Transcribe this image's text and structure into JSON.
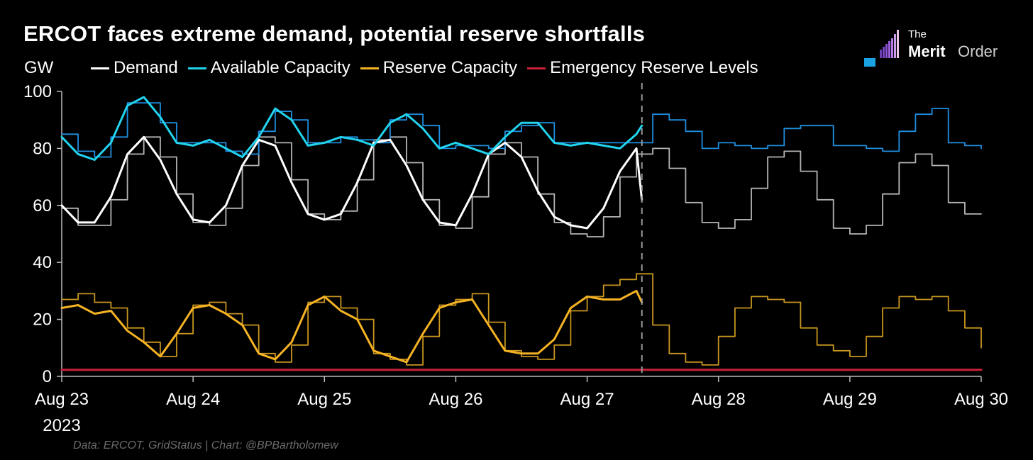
{
  "chart_data": {
    "type": "line",
    "title": "ERCOT faces extreme demand, potential reserve shortfalls",
    "ylabel": "GW",
    "xlabel": "",
    "ylim": [
      0,
      100
    ],
    "yticks": [
      0,
      20,
      40,
      60,
      80,
      100
    ],
    "x_unit": "hours since Aug 23 2023 00:00",
    "xlim": [
      0,
      168
    ],
    "xticks": [
      {
        "hour": 0,
        "label": "Aug 23"
      },
      {
        "hour": 24,
        "label": "Aug 24"
      },
      {
        "hour": 48,
        "label": "Aug 25"
      },
      {
        "hour": 72,
        "label": "Aug 26"
      },
      {
        "hour": 96,
        "label": "Aug 27"
      },
      {
        "hour": 120,
        "label": "Aug 28"
      },
      {
        "hour": 144,
        "label": "Aug 29"
      },
      {
        "hour": 168,
        "label": "Aug 30"
      }
    ],
    "year_label": "2023",
    "forecast_start_hour": 106,
    "legend": [
      {
        "name": "Demand",
        "color": "#ffffff"
      },
      {
        "name": "Available Capacity",
        "color": "#22d3ee"
      },
      {
        "name": "Reserve Capacity",
        "color": "#f5b324"
      },
      {
        "name": "Emergency Reserve Levels",
        "color": "#c8203a"
      }
    ],
    "series": [
      {
        "name": "Demand (actual)",
        "color": "#ffffff",
        "x": [
          0,
          3,
          6,
          9,
          12,
          15,
          18,
          21,
          24,
          27,
          30,
          33,
          36,
          39,
          42,
          45,
          48,
          51,
          54,
          57,
          60,
          63,
          66,
          69,
          72,
          75,
          78,
          81,
          84,
          87,
          90,
          93,
          96,
          99,
          102,
          105,
          106
        ],
        "values": [
          60,
          54,
          54,
          63,
          78,
          84,
          76,
          64,
          55,
          54,
          60,
          74,
          83,
          81,
          68,
          57,
          55,
          57,
          68,
          82,
          83,
          74,
          62,
          54,
          53,
          64,
          78,
          82,
          77,
          65,
          56,
          53,
          52,
          59,
          72,
          80,
          62
        ]
      },
      {
        "name": "Demand (forecast)",
        "color": "#b4b4b4",
        "step": true,
        "x": [
          0,
          3,
          6,
          9,
          12,
          15,
          18,
          21,
          24,
          27,
          30,
          33,
          36,
          39,
          42,
          45,
          48,
          51,
          54,
          57,
          60,
          63,
          66,
          69,
          72,
          75,
          78,
          81,
          84,
          87,
          90,
          93,
          96,
          99,
          102,
          105,
          108,
          111,
          114,
          117,
          120,
          123,
          126,
          129,
          132,
          135,
          138,
          141,
          144,
          147,
          150,
          153,
          156,
          159,
          162,
          165,
          168
        ],
        "values": [
          59,
          53,
          53,
          62,
          78,
          84,
          77,
          64,
          54,
          53,
          59,
          74,
          84,
          82,
          69,
          57,
          55,
          58,
          69,
          83,
          84,
          75,
          62,
          53,
          52,
          63,
          78,
          82,
          77,
          64,
          54,
          50,
          49,
          56,
          70,
          78,
          80,
          73,
          61,
          54,
          52,
          55,
          66,
          77,
          79,
          72,
          62,
          52,
          50,
          53,
          64,
          75,
          78,
          74,
          61,
          57,
          57
        ]
      },
      {
        "name": "Available Capacity (actual)",
        "color": "#22d3ee",
        "x": [
          0,
          3,
          6,
          9,
          12,
          15,
          18,
          21,
          24,
          27,
          30,
          33,
          36,
          39,
          42,
          45,
          48,
          51,
          54,
          57,
          60,
          63,
          66,
          69,
          72,
          75,
          78,
          81,
          84,
          87,
          90,
          93,
          96,
          99,
          102,
          105,
          106
        ],
        "values": [
          84,
          78,
          76,
          82,
          95,
          98,
          91,
          82,
          81,
          83,
          80,
          77,
          84,
          94,
          90,
          81,
          82,
          84,
          83,
          81,
          89,
          92,
          87,
          80,
          82,
          80,
          78,
          84,
          89,
          89,
          82,
          81,
          82,
          81,
          80,
          85,
          88
        ]
      },
      {
        "name": "Available Capacity (forecast)",
        "color": "#1f8fe0",
        "step": true,
        "x": [
          0,
          3,
          6,
          9,
          12,
          15,
          18,
          21,
          24,
          27,
          30,
          33,
          36,
          39,
          42,
          45,
          48,
          51,
          54,
          57,
          60,
          63,
          66,
          69,
          72,
          75,
          78,
          81,
          84,
          87,
          90,
          93,
          96,
          99,
          102,
          105,
          108,
          111,
          114,
          117,
          120,
          123,
          126,
          129,
          132,
          135,
          138,
          141,
          144,
          147,
          150,
          153,
          156,
          159,
          162,
          165,
          168
        ],
        "values": [
          85,
          79,
          77,
          84,
          96,
          96,
          89,
          82,
          82,
          82,
          79,
          78,
          86,
          93,
          90,
          82,
          82,
          84,
          83,
          82,
          90,
          92,
          88,
          80,
          81,
          81,
          80,
          86,
          88,
          89,
          82,
          82,
          82,
          82,
          82,
          82,
          92,
          90,
          86,
          80,
          82,
          81,
          80,
          81,
          87,
          88,
          88,
          81,
          81,
          80,
          79,
          86,
          92,
          94,
          82,
          81,
          80
        ]
      },
      {
        "name": "Reserve Capacity (actual)",
        "color": "#f5b324",
        "x": [
          0,
          3,
          6,
          9,
          12,
          15,
          18,
          21,
          24,
          27,
          30,
          33,
          36,
          39,
          42,
          45,
          48,
          51,
          54,
          57,
          60,
          63,
          66,
          69,
          72,
          75,
          78,
          81,
          84,
          87,
          90,
          93,
          96,
          99,
          102,
          105,
          106
        ],
        "values": [
          24,
          25,
          22,
          23,
          16,
          12,
          7,
          15,
          24,
          25,
          22,
          18,
          8,
          6,
          12,
          25,
          28,
          23,
          20,
          9,
          7,
          5,
          15,
          24,
          26,
          27,
          18,
          9,
          8,
          8,
          13,
          24,
          28,
          27,
          27,
          30,
          26
        ]
      },
      {
        "name": "Reserve Capacity (forecast)",
        "color": "#c9961f",
        "step": true,
        "x": [
          0,
          3,
          6,
          9,
          12,
          15,
          18,
          21,
          24,
          27,
          30,
          33,
          36,
          39,
          42,
          45,
          48,
          51,
          54,
          57,
          60,
          63,
          66,
          69,
          72,
          75,
          78,
          81,
          84,
          87,
          90,
          93,
          96,
          99,
          102,
          105,
          108,
          111,
          114,
          117,
          120,
          123,
          126,
          129,
          132,
          135,
          138,
          141,
          144,
          147,
          150,
          153,
          156,
          159,
          162,
          165,
          168
        ],
        "values": [
          27,
          29,
          26,
          24,
          17,
          12,
          7,
          15,
          25,
          26,
          22,
          18,
          8,
          5,
          11,
          26,
          28,
          24,
          20,
          8,
          6,
          4,
          14,
          25,
          27,
          29,
          19,
          9,
          7,
          6,
          11,
          23,
          28,
          32,
          34,
          36,
          18,
          8,
          5,
          4,
          14,
          24,
          28,
          27,
          26,
          17,
          11,
          9,
          7,
          14,
          24,
          28,
          27,
          28,
          23,
          17,
          10
        ]
      },
      {
        "name": "Emergency Reserve Levels",
        "color": "#c8203a",
        "x": [
          0,
          168
        ],
        "values": [
          2.3,
          2.3
        ]
      }
    ]
  },
  "source": "Data: ERCOT, GridStatus | Chart: @BPBartholomew",
  "logo": {
    "top": "The",
    "brand_bold": "Merit",
    "brand_light": "Order"
  }
}
